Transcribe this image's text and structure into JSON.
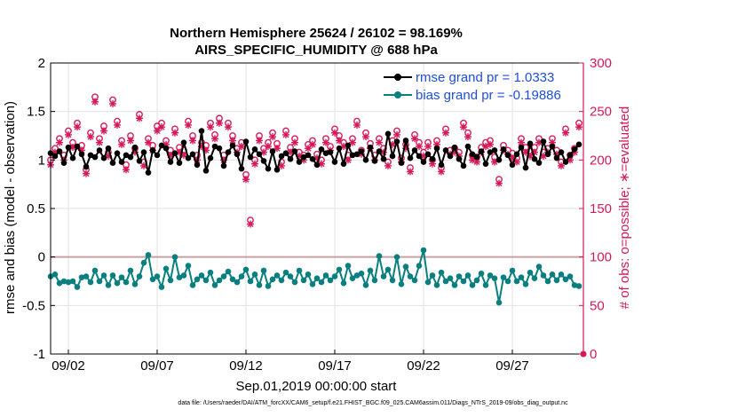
{
  "chart_data": {
    "type": "line",
    "title": "Northern Hemisphere 25624 / 26102 = 98.169%",
    "subtitle": "AIRS_SPECIFIC_HUMIDITY @ 688 hPa",
    "xlabel": "Sep.01,2019 00:00:00 start",
    "ylabel_left": "rmse and bias (model - observation)",
    "ylabel_right": "# of obs: o=possible; ∗=evaluated",
    "footnote": "data file: /Users/raeder/DAI/ATM_forcXX/CAM6_setup/f.e21.FHIST_BGC.f09_025.CAM6assim.011/Diags_NTrS_2019-09/obs_diag_output.nc",
    "xlim": [
      0.5,
      30.5
    ],
    "ylim_left": [
      -1,
      2
    ],
    "ylim_right": [
      0,
      300
    ],
    "x_ticks": [
      1.5,
      6.5,
      11.5,
      16.5,
      21.5,
      26.5
    ],
    "x_tick_labels": [
      "09/02",
      "09/07",
      "09/12",
      "09/17",
      "09/22",
      "09/27"
    ],
    "y_ticks_left": [
      -1,
      -0.5,
      0,
      0.5,
      1,
      1.5,
      2
    ],
    "y_tick_labels_left": [
      "-1",
      "-0.5",
      "0",
      "0.5",
      "1",
      "1.5",
      "2"
    ],
    "y_ticks_right": [
      0,
      50,
      100,
      150,
      200,
      250,
      300
    ],
    "y_tick_labels_right": [
      "0",
      "50",
      "100",
      "150",
      "200",
      "250",
      "300"
    ],
    "grid": true,
    "legend_position": "top-right",
    "series": [
      {
        "name": "rmse grand pr = 1.0333",
        "color": "#000000",
        "marker": "dot",
        "axis": "left",
        "x": [
          0.5,
          0.75,
          1,
          1.25,
          1.5,
          1.75,
          2,
          2.25,
          2.5,
          2.75,
          3,
          3.25,
          3.5,
          3.75,
          4,
          4.25,
          4.5,
          4.75,
          5,
          5.25,
          5.5,
          5.75,
          6,
          6.25,
          6.5,
          6.75,
          7,
          7.25,
          7.5,
          7.75,
          8,
          8.25,
          8.5,
          8.75,
          9,
          9.25,
          9.5,
          9.75,
          10,
          10.25,
          10.5,
          10.75,
          11,
          11.25,
          11.5,
          11.75,
          12,
          12.25,
          12.5,
          12.75,
          13,
          13.25,
          13.5,
          13.75,
          14,
          14.25,
          14.5,
          14.75,
          15,
          15.25,
          15.5,
          15.75,
          16,
          16.25,
          16.5,
          16.75,
          17,
          17.25,
          17.5,
          17.75,
          18,
          18.25,
          18.5,
          18.75,
          19,
          19.25,
          19.5,
          19.75,
          20,
          20.25,
          20.5,
          20.75,
          21,
          21.25,
          21.5,
          21.75,
          22,
          22.25,
          22.5,
          22.75,
          23,
          23.25,
          23.5,
          23.75,
          24,
          24.25,
          24.5,
          24.75,
          25,
          25.25,
          25.5,
          25.75,
          26,
          26.25,
          26.5,
          26.75,
          27,
          27.25,
          27.5,
          27.75,
          28,
          28.25,
          28.5,
          28.75,
          29,
          29.25,
          29.5,
          29.75,
          30,
          30.25
        ],
        "values": [
          1.07,
          1.04,
          1.09,
          0.97,
          1.13,
          1.02,
          1.14,
          1.06,
          0.93,
          1.05,
          1.03,
          1.1,
          1.02,
          1.12,
          0.97,
          1.07,
          0.98,
          1.05,
          1.03,
          1.13,
          0.99,
          1.08,
          0.87,
          1.1,
          1.05,
          1.15,
          1.12,
          0.98,
          1.07,
          0.97,
          1.18,
          1.02,
          1.06,
          0.95,
          1.3,
          0.89,
          1.02,
          1.14,
          1.12,
          0.94,
          1.08,
          1.15,
          1.06,
          0.91,
          1.19,
          1.03,
          1.11,
          1.06,
          0.99,
          0.91,
          1.09,
          0.9,
          1.04,
          1.07,
          1.01,
          1.09,
          0.98,
          1.03,
          1.05,
          1.01,
          0.95,
          1.11,
          1.07,
          1.08,
          0.98,
          1.12,
          0.96,
          1.15,
          1.05,
          1.06,
          1.09,
          1.0,
          1.13,
          0.99,
          1.09,
          1.01,
          1.27,
          1.04,
          1.19,
          0.97,
          1.2,
          1.02,
          1.1,
          1.04,
          0.98,
          1.06,
          1.01,
          1.12,
          0.95,
          1.1,
          1.04,
          1.13,
          1.01,
          0.94,
          1.14,
          1.06,
          1.03,
          1.09,
          0.96,
          1.08,
          1.1,
          1.0,
          1.11,
          1.05,
          0.95,
          1.06,
          1.13,
          0.92,
          1.17,
          1.01,
          0.97,
          1.19,
          1.06,
          1.14,
          1.02,
          1.08,
          0.98,
          1.05,
          1.11,
          1.16
        ]
      },
      {
        "name": "bias grand pr = -0.19886",
        "color": "#0a7f7f",
        "marker": "dot",
        "axis": "left",
        "x": [
          0.5,
          0.75,
          1,
          1.25,
          1.5,
          1.75,
          2,
          2.25,
          2.5,
          2.75,
          3,
          3.25,
          3.5,
          3.75,
          4,
          4.25,
          4.5,
          4.75,
          5,
          5.25,
          5.5,
          5.75,
          6,
          6.25,
          6.5,
          6.75,
          7,
          7.25,
          7.5,
          7.75,
          8,
          8.25,
          8.5,
          8.75,
          9,
          9.25,
          9.5,
          9.75,
          10,
          10.25,
          10.5,
          10.75,
          11,
          11.25,
          11.5,
          11.75,
          12,
          12.25,
          12.5,
          12.75,
          13,
          13.25,
          13.5,
          13.75,
          14,
          14.25,
          14.5,
          14.75,
          15,
          15.25,
          15.5,
          15.75,
          16,
          16.25,
          16.5,
          16.75,
          17,
          17.25,
          17.5,
          17.75,
          18,
          18.25,
          18.5,
          18.75,
          19,
          19.25,
          19.5,
          19.75,
          20,
          20.25,
          20.5,
          20.75,
          21,
          21.25,
          21.5,
          21.75,
          22,
          22.25,
          22.5,
          22.75,
          23,
          23.25,
          23.5,
          23.75,
          24,
          24.25,
          24.5,
          24.75,
          25,
          25.25,
          25.5,
          25.75,
          26,
          26.25,
          26.5,
          26.75,
          27,
          27.25,
          27.5,
          27.75,
          28,
          28.25,
          28.5,
          28.75,
          29,
          29.25,
          29.5,
          29.75,
          30,
          30.25
        ],
        "values": [
          -0.2,
          -0.18,
          -0.27,
          -0.25,
          -0.26,
          -0.25,
          -0.31,
          -0.21,
          -0.2,
          -0.26,
          -0.14,
          -0.25,
          -0.19,
          -0.29,
          -0.19,
          -0.27,
          -0.21,
          -0.26,
          -0.14,
          -0.28,
          -0.2,
          -0.06,
          0.02,
          -0.23,
          -0.2,
          -0.31,
          -0.12,
          -0.24,
          0.0,
          -0.21,
          -0.19,
          -0.09,
          -0.29,
          -0.23,
          -0.19,
          -0.24,
          -0.16,
          -0.29,
          -0.24,
          -0.2,
          -0.15,
          -0.23,
          -0.26,
          -0.2,
          -0.13,
          -0.25,
          -0.18,
          -0.29,
          -0.14,
          -0.3,
          -0.23,
          -0.19,
          -0.24,
          -0.16,
          -0.2,
          -0.26,
          -0.14,
          -0.24,
          -0.18,
          -0.28,
          -0.22,
          -0.26,
          -0.19,
          -0.24,
          -0.2,
          -0.13,
          -0.27,
          -0.09,
          -0.22,
          -0.19,
          -0.17,
          -0.29,
          -0.14,
          -0.24,
          0.01,
          -0.2,
          -0.13,
          -0.24,
          0.0,
          -0.28,
          -0.1,
          -0.2,
          -0.24,
          -0.09,
          0.07,
          -0.26,
          -0.19,
          -0.29,
          -0.16,
          -0.25,
          -0.22,
          -0.29,
          -0.2,
          -0.25,
          -0.19,
          -0.29,
          -0.24,
          -0.17,
          -0.29,
          -0.19,
          -0.22,
          -0.47,
          -0.21,
          -0.25,
          -0.14,
          -0.25,
          -0.21,
          -0.28,
          -0.16,
          -0.22,
          -0.1,
          -0.19,
          -0.25,
          -0.18,
          -0.24,
          -0.18,
          -0.23,
          -0.2,
          -0.29,
          -0.3
        ]
      }
    ],
    "obs_possible": {
      "name": "possible",
      "color": "#d6195a",
      "marker": "o",
      "axis": "right",
      "x": [
        0.5,
        0.75,
        1,
        1.25,
        1.5,
        1.75,
        2,
        2.25,
        2.5,
        2.75,
        3,
        3.25,
        3.5,
        3.75,
        4,
        4.25,
        4.5,
        4.75,
        5,
        5.25,
        5.5,
        5.75,
        6,
        6.25,
        6.5,
        6.75,
        7,
        7.25,
        7.5,
        7.75,
        8,
        8.25,
        8.5,
        8.75,
        9,
        9.25,
        9.5,
        9.75,
        10,
        10.25,
        10.5,
        10.75,
        11,
        11.25,
        11.5,
        11.75,
        12,
        12.25,
        12.5,
        12.75,
        13,
        13.25,
        13.5,
        13.75,
        14,
        14.25,
        14.5,
        14.75,
        15,
        15.25,
        15.5,
        15.75,
        16,
        16.25,
        16.5,
        16.75,
        17,
        17.25,
        17.5,
        17.75,
        18,
        18.25,
        18.5,
        18.75,
        19,
        19.25,
        19.5,
        19.75,
        20,
        20.25,
        20.5,
        20.75,
        21,
        21.25,
        21.5,
        21.75,
        22,
        22.25,
        22.5,
        22.75,
        23,
        23.25,
        23.5,
        23.75,
        24,
        24.25,
        24.5,
        24.75,
        25,
        25.25,
        25.5,
        25.75,
        26,
        26.25,
        26.5,
        26.75,
        27,
        27.25,
        27.5,
        27.75,
        28,
        28.25,
        28.5,
        28.75,
        29,
        29.25,
        29.5,
        29.75,
        30,
        30.25
      ],
      "values": [
        200,
        212,
        222,
        205,
        230,
        218,
        238,
        215,
        190,
        228,
        265,
        222,
        235,
        208,
        262,
        240,
        220,
        195,
        225,
        212,
        247,
        198,
        222,
        215,
        235,
        238,
        220,
        210,
        232,
        213,
        210,
        240,
        225,
        205,
        218,
        215,
        238,
        226,
        243,
        205,
        238,
        225,
        212,
        218,
        185,
        138,
        200,
        225,
        212,
        218,
        228,
        217,
        198,
        230,
        213,
        222,
        208,
        205,
        216,
        220,
        206,
        200,
        222,
        214,
        232,
        225,
        218,
        205,
        222,
        240,
        210,
        228,
        217,
        205,
        222,
        212,
        198,
        220,
        230,
        202,
        216,
        192,
        226,
        218,
        208,
        218,
        200,
        220,
        192,
        232,
        210,
        212,
        208,
        238,
        228,
        205,
        203,
        213,
        218,
        220,
        203,
        180,
        215,
        210,
        207,
        202,
        222,
        213,
        209,
        213,
        222,
        208,
        212,
        222,
        210,
        198,
        232,
        205,
        212,
        238
      ]
    },
    "obs_evaluated": {
      "name": "evaluated",
      "color": "#d6195a",
      "marker": "*",
      "axis": "right",
      "x": [
        0.5,
        0.75,
        1,
        1.25,
        1.5,
        1.75,
        2,
        2.25,
        2.5,
        2.75,
        3,
        3.25,
        3.5,
        3.75,
        4,
        4.25,
        4.5,
        4.75,
        5,
        5.25,
        5.5,
        5.75,
        6,
        6.25,
        6.5,
        6.75,
        7,
        7.25,
        7.5,
        7.75,
        8,
        8.25,
        8.5,
        8.75,
        9,
        9.25,
        9.5,
        9.75,
        10,
        10.25,
        10.5,
        10.75,
        11,
        11.25,
        11.5,
        11.75,
        12,
        12.25,
        12.5,
        12.75,
        13,
        13.25,
        13.5,
        13.75,
        14,
        14.25,
        14.5,
        14.75,
        15,
        15.25,
        15.5,
        15.75,
        16,
        16.25,
        16.5,
        16.75,
        17,
        17.25,
        17.5,
        17.75,
        18,
        18.25,
        18.5,
        18.75,
        19,
        19.25,
        19.5,
        19.75,
        20,
        20.25,
        20.5,
        20.75,
        21,
        21.25,
        21.5,
        21.75,
        22,
        22.25,
        22.5,
        22.75,
        23,
        23.25,
        23.5,
        23.75,
        24,
        24.25,
        24.5,
        24.75,
        25,
        25.25,
        25.5,
        25.75,
        26,
        26.25,
        26.5,
        26.75,
        27,
        27.25,
        27.5,
        27.75,
        28,
        28.25,
        28.5,
        28.75,
        29,
        29.25,
        29.5,
        29.75,
        30,
        30.25
      ],
      "values": [
        195,
        208,
        218,
        200,
        226,
        213,
        234,
        210,
        186,
        224,
        260,
        218,
        230,
        204,
        258,
        236,
        216,
        190,
        220,
        208,
        243,
        194,
        218,
        210,
        230,
        234,
        216,
        205,
        228,
        208,
        205,
        236,
        220,
        200,
        214,
        210,
        234,
        222,
        238,
        200,
        234,
        220,
        208,
        214,
        180,
        134,
        196,
        220,
        208,
        214,
        224,
        212,
        194,
        226,
        208,
        218,
        204,
        200,
        212,
        216,
        202,
        196,
        218,
        210,
        228,
        220,
        214,
        200,
        218,
        236,
        206,
        224,
        212,
        200,
        218,
        208,
        194,
        216,
        226,
        198,
        212,
        188,
        222,
        214,
        204,
        214,
        196,
        216,
        188,
        228,
        206,
        208,
        204,
        234,
        224,
        200,
        198,
        208,
        214,
        216,
        198,
        176,
        210,
        206,
        202,
        198,
        218,
        208,
        204,
        208,
        218,
        204,
        208,
        218,
        206,
        194,
        228,
        200,
        208,
        234
      ]
    }
  }
}
